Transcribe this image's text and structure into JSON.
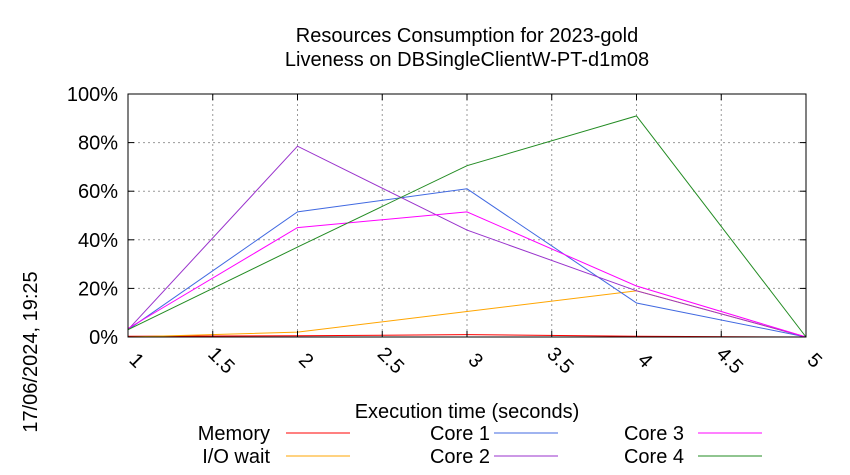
{
  "chart_data": {
    "type": "line",
    "title": "Resources Consumption for 2023-gold",
    "subtitle": "Liveness on DBSingleClientW-PT-d1m08",
    "xlabel": "Execution time (seconds)",
    "ylabel": "",
    "side_label": "17/06/2024, 19:25",
    "x": [
      1,
      2,
      3,
      4,
      5
    ],
    "xlim": [
      1,
      5
    ],
    "ylim": [
      0,
      100
    ],
    "x_ticks": [
      "1",
      "1.5",
      "2",
      "2.5",
      "3",
      "3.5",
      "4",
      "4.5",
      "5"
    ],
    "y_ticks": [
      "0%",
      "20%",
      "40%",
      "60%",
      "80%",
      "100%"
    ],
    "grid": true,
    "legend_position": "bottom",
    "series": [
      {
        "name": "Memory",
        "color": "#ff0000",
        "values": [
          0.3,
          0.5,
          1,
          0.3,
          0
        ]
      },
      {
        "name": "I/O wait",
        "color": "#ffa500",
        "values": [
          0,
          2,
          10.5,
          19,
          0
        ]
      },
      {
        "name": "Core 1",
        "color": "#4169e1",
        "values": [
          3,
          51.5,
          61,
          14,
          0
        ]
      },
      {
        "name": "Core 2",
        "color": "#9932cc",
        "values": [
          3,
          78.5,
          44,
          19,
          0
        ]
      },
      {
        "name": "Core 3",
        "color": "#ff00ff",
        "values": [
          3.5,
          45,
          51.5,
          21,
          0
        ]
      },
      {
        "name": "Core 4",
        "color": "#228b22",
        "values": [
          3,
          37,
          70.5,
          91,
          0
        ]
      }
    ]
  }
}
